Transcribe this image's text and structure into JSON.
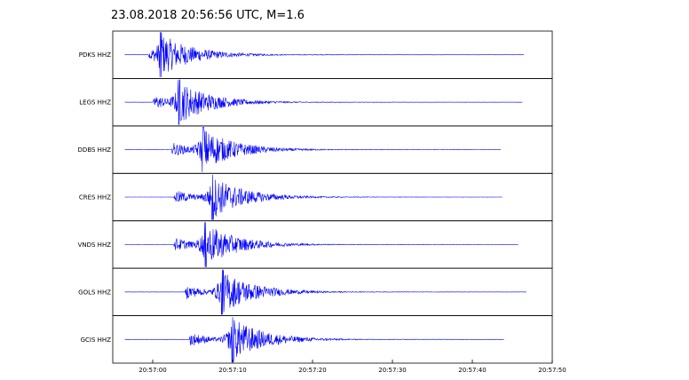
{
  "chart_data": {
    "type": "line",
    "title": "23.08.2018  20:56:56 UTC, M=1.6",
    "xlabel": "",
    "ylabel": "",
    "x_unit": "UTC time",
    "xlim": [
      "20:56:55",
      "20:57:50"
    ],
    "xticks": [
      "20:57:00",
      "20:57:10",
      "20:57:20",
      "20:57:30",
      "20:57:40",
      "20:57:50"
    ],
    "grid": false,
    "line_color": "#0000ff",
    "traces": [
      {
        "name": "PDKS HHZ",
        "start": "20:56:56.5",
        "end": "20:57:46.5",
        "p_arrival": "20:56:59.5",
        "s_arrival": "20:57:01.0",
        "amp_max": 1.0
      },
      {
        "name": "LEGS HHZ",
        "start": "20:56:56.5",
        "end": "20:57:46.3",
        "p_arrival": "20:57:00.0",
        "s_arrival": "20:57:03.3",
        "amp_max": 1.0
      },
      {
        "name": "DDBS HHZ",
        "start": "20:56:56.5",
        "end": "20:57:43.6",
        "p_arrival": "20:57:02.3",
        "s_arrival": "20:57:06.3",
        "amp_max": 1.0
      },
      {
        "name": "CRES HHZ",
        "start": "20:56:56.5",
        "end": "20:57:43.8",
        "p_arrival": "20:57:02.6",
        "s_arrival": "20:57:07.5",
        "amp_max": 1.0
      },
      {
        "name": "VNDS HHZ",
        "start": "20:56:56.5",
        "end": "20:57:45.8",
        "p_arrival": "20:57:02.6",
        "s_arrival": "20:57:06.6",
        "amp_max": 1.0
      },
      {
        "name": "GOLS HHZ",
        "start": "20:56:56.5",
        "end": "20:57:46.8",
        "p_arrival": "20:57:04.0",
        "s_arrival": "20:57:08.7",
        "amp_max": 1.0
      },
      {
        "name": "GCIS HHZ",
        "start": "20:56:56.5",
        "end": "20:57:44.0",
        "p_arrival": "20:57:04.5",
        "s_arrival": "20:57:10.0",
        "amp_max": 1.0
      }
    ]
  }
}
